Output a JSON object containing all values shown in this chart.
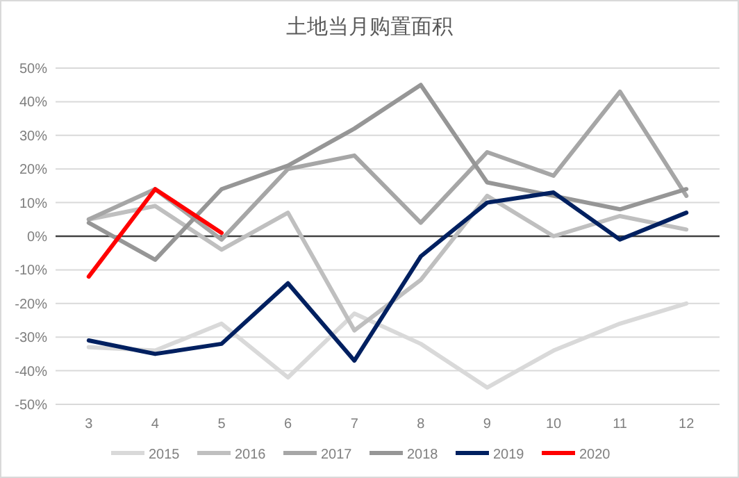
{
  "chart_data": {
    "type": "line",
    "title": "土地当月购置面积",
    "categories": [
      "3",
      "4",
      "5",
      "6",
      "7",
      "8",
      "9",
      "10",
      "11",
      "12"
    ],
    "series": [
      {
        "name": "2015",
        "color": "#d9d9d9",
        "values": [
          -33,
          -34,
          -26,
          -42,
          -23,
          -32,
          -45,
          -34,
          -26,
          -20
        ]
      },
      {
        "name": "2016",
        "color": "#bfbfbf",
        "values": [
          5,
          9,
          -4,
          7,
          -28,
          -13,
          12,
          0,
          6,
          2
        ]
      },
      {
        "name": "2017",
        "color": "#a6a6a6",
        "values": [
          5,
          14,
          -1,
          20,
          24,
          4,
          25,
          18,
          43,
          12
        ]
      },
      {
        "name": "2018",
        "color": "#969696",
        "values": [
          4,
          -7,
          14,
          21,
          32,
          45,
          16,
          12,
          8,
          14
        ]
      },
      {
        "name": "2019",
        "color": "#002060",
        "values": [
          -31,
          -35,
          -32,
          -14,
          -37,
          -6,
          10,
          13,
          -1,
          7
        ]
      },
      {
        "name": "2020",
        "color": "#ff0000",
        "values": [
          -12,
          14,
          1,
          null,
          null,
          null,
          null,
          null,
          null,
          null
        ]
      }
    ],
    "ylim": [
      -50,
      50
    ],
    "yticks": [
      {
        "value": -50,
        "label": "-50%"
      },
      {
        "value": -40,
        "label": "-40%"
      },
      {
        "value": -30,
        "label": "-30%"
      },
      {
        "value": -20,
        "label": "-20%"
      },
      {
        "value": -10,
        "label": "-10%"
      },
      {
        "value": 0,
        "label": "0%"
      },
      {
        "value": 10,
        "label": "10%"
      },
      {
        "value": 20,
        "label": "20%"
      },
      {
        "value": 30,
        "label": "30%"
      },
      {
        "value": 40,
        "label": "40%"
      },
      {
        "value": 50,
        "label": "50%"
      }
    ],
    "grid": "y",
    "legend": "bottom"
  }
}
